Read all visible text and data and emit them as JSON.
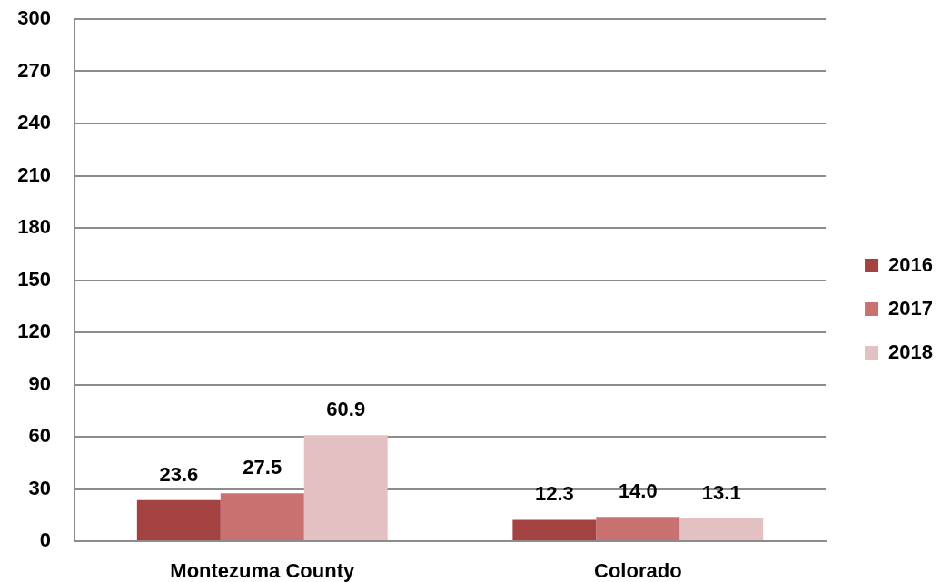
{
  "chart_data": {
    "type": "bar",
    "categories": [
      "Montezuma County",
      "Colorado"
    ],
    "series": [
      {
        "name": "2016",
        "color": "#a44241",
        "values": [
          23.6,
          12.3
        ],
        "value_labels": [
          "23.6",
          "12.3"
        ]
      },
      {
        "name": "2017",
        "color": "#c87170",
        "values": [
          27.5,
          14.0
        ],
        "value_labels": [
          "27.5",
          "14.0"
        ]
      },
      {
        "name": "2018",
        "color": "#e3c0c1",
        "values": [
          60.9,
          13.1
        ],
        "value_labels": [
          "60.9",
          "13.1"
        ]
      }
    ],
    "ylim": [
      0,
      300
    ],
    "yticks": [
      0,
      30,
      60,
      90,
      120,
      150,
      180,
      210,
      240,
      270,
      300
    ],
    "grid": "y",
    "legend": "right"
  }
}
